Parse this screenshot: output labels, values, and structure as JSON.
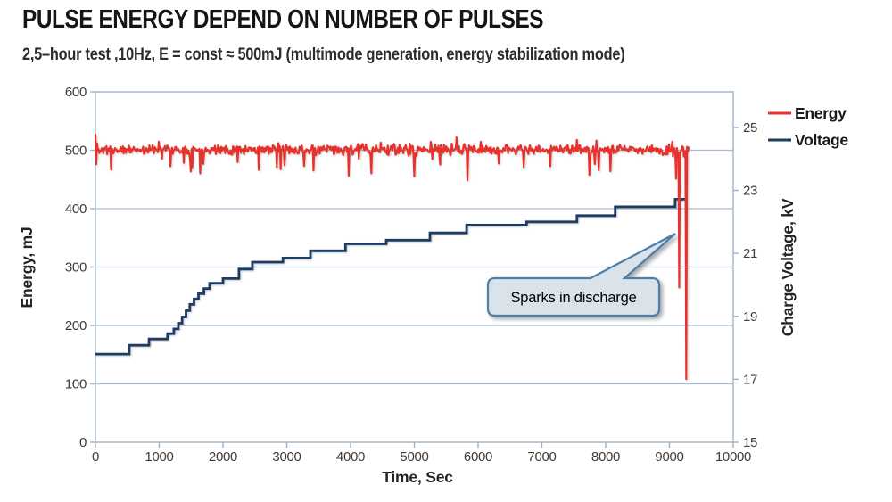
{
  "header": {
    "title": "PULSE ENERGY DEPEND ON NUMBER OF PULSES",
    "subtitle": "2,5–hour test ,10Hz, E = const ≈ 500mJ (multimode generation, energy stabilization mode)"
  },
  "chart_data": {
    "type": "line",
    "title": "PULSE ENERGY DEPEND ON NUMBER OF PULSES",
    "xlabel": "Time, Sec",
    "ylabel_left": "Energy, mJ",
    "ylabel_right": "Charge Voltage, kV",
    "xlim": [
      0,
      10000
    ],
    "ylim_left": [
      0,
      600
    ],
    "ylim_right": [
      15,
      26.13
    ],
    "x_ticks": [
      0,
      1000,
      2000,
      3000,
      4000,
      5000,
      6000,
      7000,
      8000,
      9000,
      10000
    ],
    "y_ticks_left": [
      0,
      100,
      200,
      300,
      400,
      500,
      600
    ],
    "y_ticks_right": [
      15,
      17,
      19,
      21,
      23,
      25
    ],
    "grid": "horizontal-only",
    "plot_border": true,
    "colors": {
      "energy": "#e8312a",
      "voltage": "#1d3c63",
      "gridline": "#a9bed3",
      "axis": "#9db3c9",
      "callout_fill": "#dbe3ea",
      "callout_border": "#4d7fa9"
    },
    "legend": {
      "position": "top-right",
      "entries": [
        {
          "label": "Energy",
          "color": "#e8312a"
        },
        {
          "label": "Voltage",
          "color": "#1d3c63"
        }
      ]
    },
    "series": [
      {
        "name": "Energy",
        "axis": "left",
        "color": "#e8312a",
        "style": "noisy-line",
        "t_start": 0,
        "t_end": 9300,
        "baseline_mJ": 501,
        "noise_model": {
          "seed": 11,
          "n_points": 760,
          "amplitude_mJ": 9,
          "dip_probability": 0.06,
          "dip_depth_mJ": [
            12,
            40
          ],
          "spike_probability": 0.015,
          "spike_height_mJ": [
            9,
            22
          ],
          "mid_boost": {
            "t_from": 3500,
            "t_to": 6000,
            "mult": 1.3
          },
          "end_boost": {
            "t_from": 8880,
            "mult": 1.9
          },
          "start_values_mJ": [
            528,
            476,
            512
          ]
        },
        "anomalies": [
          {
            "t": 9147,
            "energy_mJ": 265
          },
          {
            "t": 9262,
            "energy_mJ": 108
          }
        ]
      },
      {
        "name": "Voltage",
        "axis": "right",
        "color": "#1d3c63",
        "style": "step",
        "steps": [
          [
            0,
            17.8
          ],
          [
            530,
            18.08
          ],
          [
            840,
            18.28
          ],
          [
            1130,
            18.45
          ],
          [
            1230,
            18.6
          ],
          [
            1300,
            18.78
          ],
          [
            1360,
            18.98
          ],
          [
            1420,
            19.18
          ],
          [
            1480,
            19.38
          ],
          [
            1545,
            19.55
          ],
          [
            1615,
            19.72
          ],
          [
            1700,
            19.88
          ],
          [
            1790,
            20.05
          ],
          [
            2000,
            20.2
          ],
          [
            2250,
            20.5
          ],
          [
            2460,
            20.72
          ],
          [
            2940,
            20.85
          ],
          [
            3370,
            21.08
          ],
          [
            3920,
            21.3
          ],
          [
            4560,
            21.42
          ],
          [
            5245,
            21.65
          ],
          [
            5820,
            21.9
          ],
          [
            6760,
            22.0
          ],
          [
            7550,
            22.2
          ],
          [
            8150,
            22.48
          ],
          [
            9090,
            22.72
          ],
          [
            9245,
            22.72
          ]
        ]
      }
    ],
    "annotation": {
      "text": "Sparks in discharge",
      "target_t": 9150,
      "target_energy_mJ": 390
    }
  }
}
